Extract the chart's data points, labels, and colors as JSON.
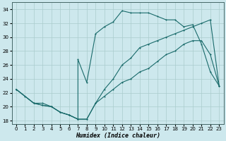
{
  "xlabel": "Humidex (Indice chaleur)",
  "ylabel": "",
  "background_color": "#cde8ed",
  "grid_color": "#aacccc",
  "line_color": "#1a6b6b",
  "xlim": [
    -0.5,
    23.5
  ],
  "ylim": [
    17.5,
    35.0
  ],
  "xticks": [
    0,
    1,
    2,
    3,
    4,
    5,
    6,
    7,
    8,
    9,
    10,
    11,
    12,
    13,
    14,
    15,
    16,
    17,
    18,
    19,
    20,
    21,
    22,
    23
  ],
  "yticks": [
    18,
    20,
    22,
    24,
    26,
    28,
    30,
    32,
    34
  ],
  "line1_x": [
    0,
    1,
    2,
    3,
    4,
    5,
    6,
    7,
    7,
    8,
    9,
    10,
    11,
    12,
    13,
    14,
    15,
    16,
    17,
    18,
    19,
    20,
    21,
    22,
    23
  ],
  "line1_y": [
    22.5,
    21.5,
    20.5,
    20.5,
    20.0,
    19.2,
    18.8,
    18.2,
    26.8,
    23.5,
    30.5,
    31.5,
    32.2,
    33.8,
    33.5,
    33.5,
    33.5,
    33.0,
    32.5,
    32.5,
    31.5,
    31.8,
    29.0,
    25.0,
    23.0
  ],
  "line2_x": [
    0,
    2,
    3,
    4,
    5,
    6,
    7,
    8,
    9,
    10,
    11,
    12,
    13,
    14,
    15,
    16,
    17,
    18,
    19,
    20,
    21,
    22,
    23
  ],
  "line2_y": [
    22.5,
    20.5,
    20.2,
    20.0,
    19.2,
    18.8,
    18.2,
    18.2,
    20.5,
    21.5,
    22.5,
    23.5,
    24.0,
    25.0,
    25.5,
    26.5,
    27.5,
    28.0,
    29.0,
    29.5,
    29.5,
    27.5,
    23.0
  ],
  "line3_x": [
    0,
    2,
    3,
    4,
    5,
    6,
    7,
    8,
    9,
    10,
    11,
    12,
    13,
    14,
    15,
    16,
    17,
    18,
    19,
    20,
    21,
    22,
    23
  ],
  "line3_y": [
    22.5,
    20.5,
    20.2,
    20.0,
    19.2,
    18.8,
    18.2,
    18.2,
    20.5,
    22.5,
    24.0,
    26.0,
    27.0,
    28.5,
    29.0,
    29.5,
    30.0,
    30.5,
    31.0,
    31.5,
    32.0,
    32.5,
    23.0
  ]
}
